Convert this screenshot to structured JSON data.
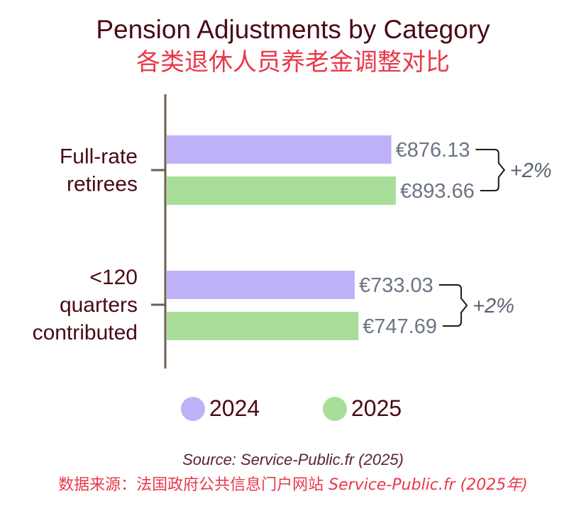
{
  "title": "Pension Adjustments by Category",
  "subtitle_cn": "各类退休人员养老金调整对比",
  "source": "Source: Service-Public.fr (2025)",
  "source_cn_prefix": "数据来源：法国政府公共信息门户网站 ",
  "source_cn_suffix": "Service-Public.fr (2025年)",
  "colors": {
    "2024": "#bfb1f7",
    "2025": "#a8de99",
    "axis": "#6e5e52"
  },
  "chart_data": {
    "type": "bar",
    "orientation": "horizontal",
    "categories": [
      "Full-rate retirees",
      "<120 quarters contributed"
    ],
    "category_lines": [
      [
        "Full-rate",
        "retirees"
      ],
      [
        "<120",
        "quarters",
        "contributed"
      ]
    ],
    "series": [
      {
        "name": "2024",
        "values": [
          876.13,
          733.03
        ],
        "labels": [
          "€876.13",
          "€733.03"
        ]
      },
      {
        "name": "2025",
        "values": [
          893.66,
          747.69
        ],
        "labels": [
          "€893.66",
          "€747.69"
        ]
      }
    ],
    "annotations": [
      "+2%",
      "+2%"
    ],
    "legend": "bottom",
    "grid": false
  }
}
